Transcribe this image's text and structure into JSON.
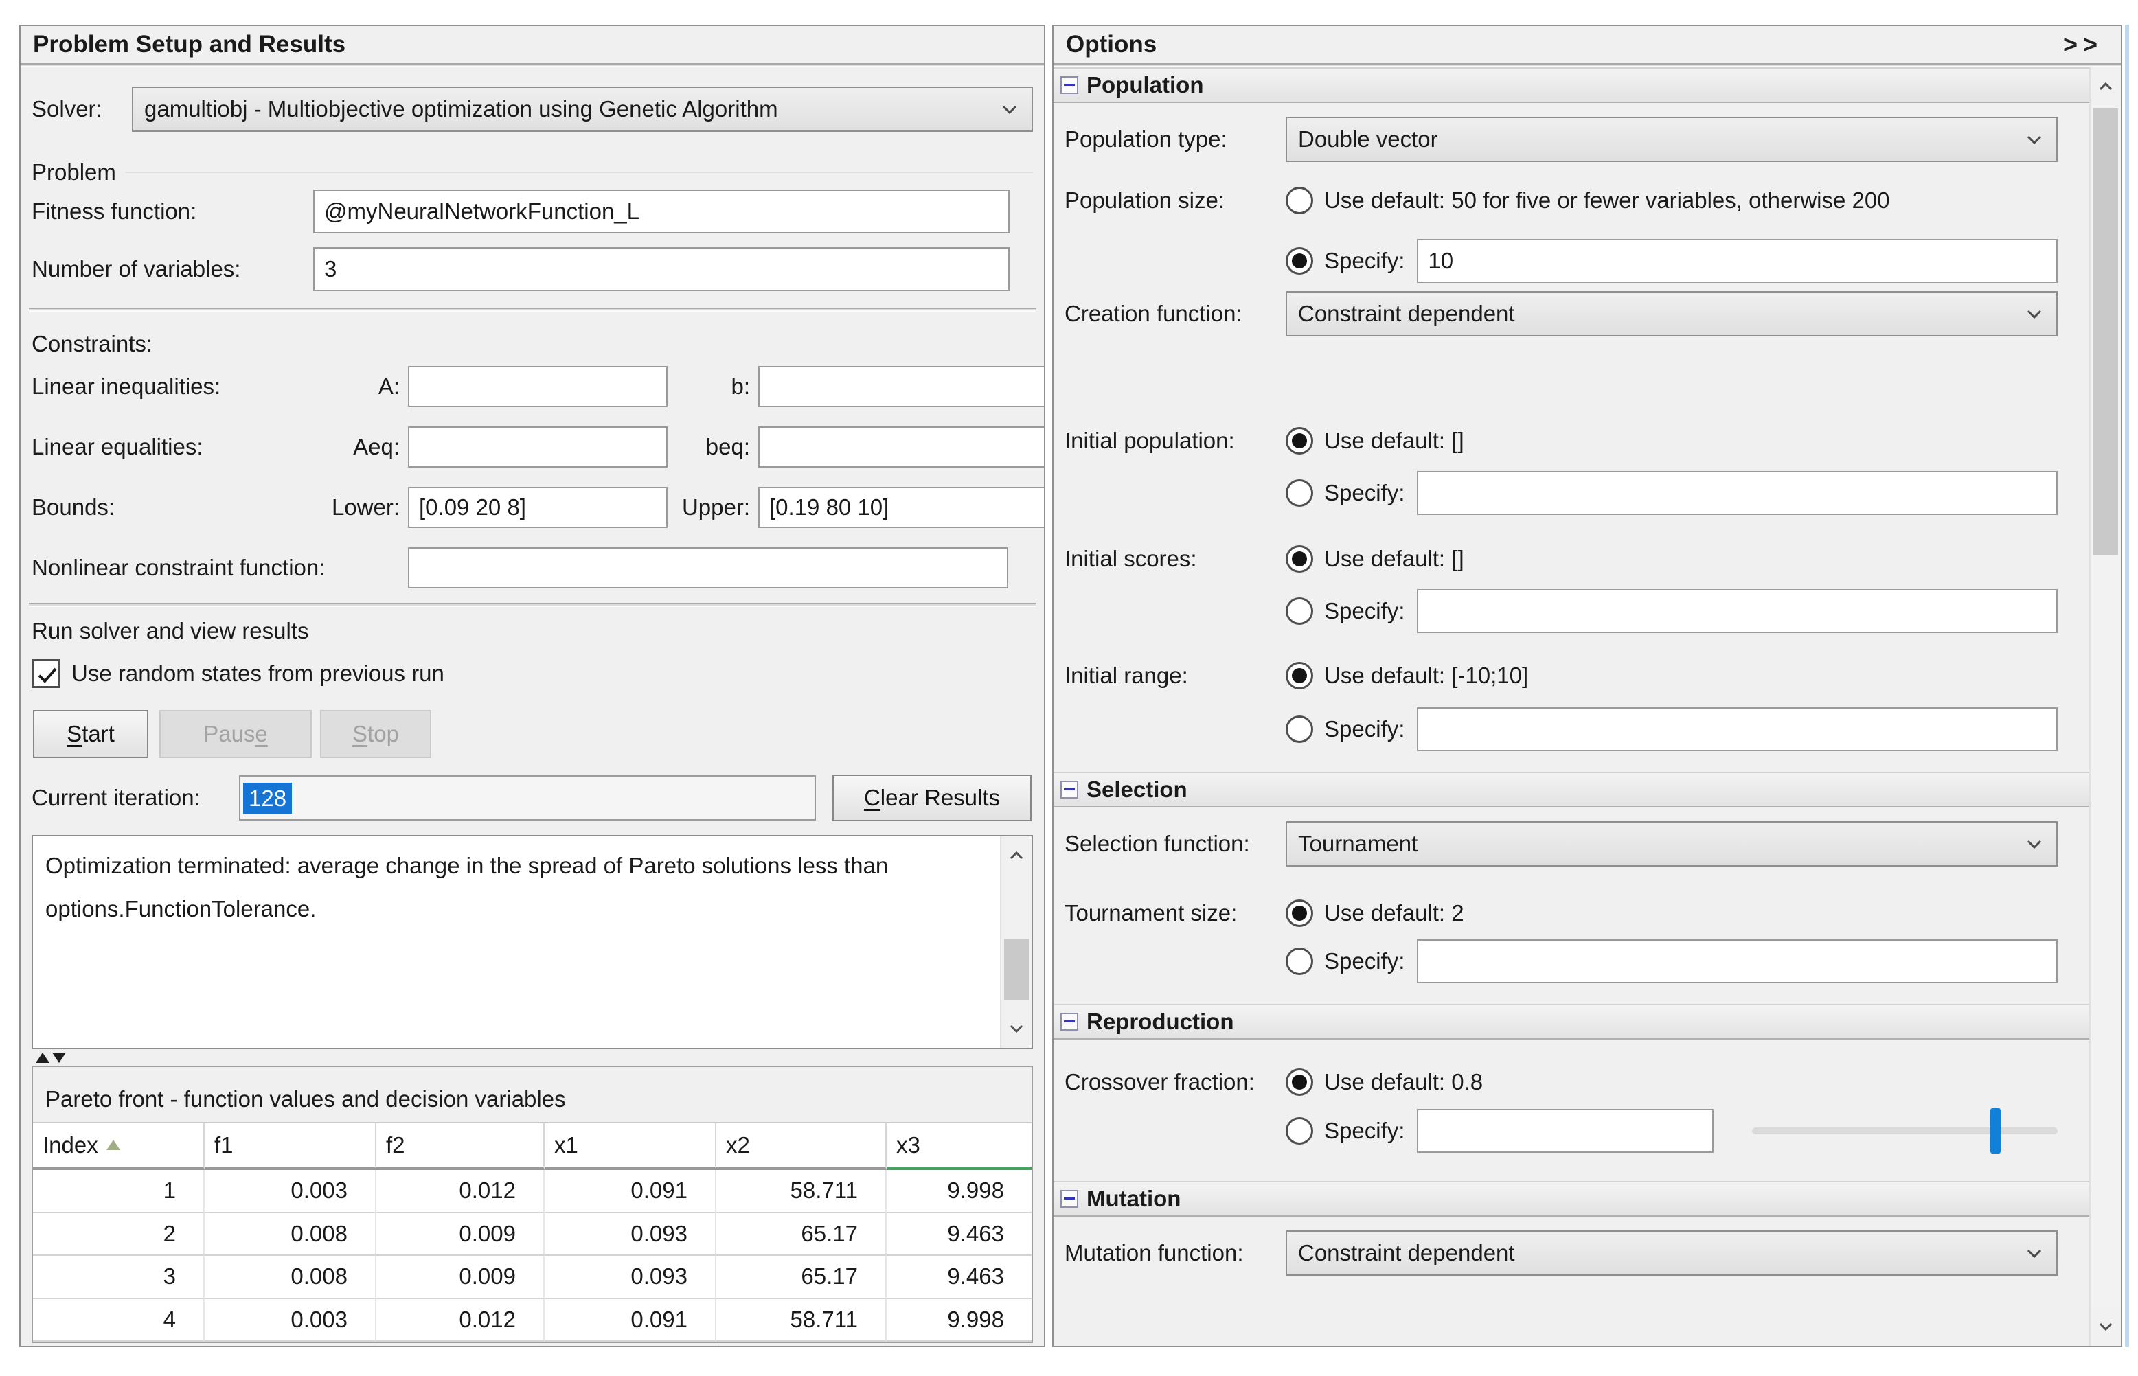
{
  "problem_panel": {
    "title": "Problem Setup and Results",
    "solver_label": "Solver:",
    "solver_value": "gamultiobj - Multiobjective optimization using Genetic Algorithm",
    "problem_group": {
      "label": "Problem",
      "fitness_label": "Fitness function:",
      "fitness_value": "@myNeuralNetworkFunction_L",
      "numvars_label": "Number of variables:",
      "numvars_value": "3"
    },
    "constraints": {
      "label": "Constraints:",
      "lin_ineq_label": "Linear inequalities:",
      "a_label": "A:",
      "a_value": "",
      "b_label": "b:",
      "b_value": "",
      "lin_eq_label": "Linear equalities:",
      "aeq_label": "Aeq:",
      "aeq_value": "",
      "beq_label": "beq:",
      "beq_value": "",
      "bounds_label": "Bounds:",
      "lower_label": "Lower:",
      "lower_value": "[0.09 20 8]",
      "upper_label": "Upper:",
      "upper_value": "[0.19 80 10]",
      "nonlinear_label": "Nonlinear constraint function:",
      "nonlinear_value": ""
    },
    "run": {
      "label": "Run solver and view results",
      "checkbox_label": "Use random states from previous run",
      "start_label": "Start",
      "pause_label": "Pause",
      "stop_label": "Stop",
      "iteration_label": "Current iteration:",
      "iteration_value": "128",
      "clear_label": "Clear Results",
      "status_text": "Optimization terminated: average change in the spread of Pareto solutions less than options.FunctionTolerance."
    },
    "pareto": {
      "title": "Pareto front - function values and decision variables",
      "columns": [
        "Index",
        "f1",
        "f2",
        "x1",
        "x2",
        "x3"
      ],
      "rows": [
        [
          "1",
          "0.003",
          "0.012",
          "0.091",
          "58.711",
          "9.998"
        ],
        [
          "2",
          "0.008",
          "0.009",
          "0.093",
          "65.17",
          "9.463"
        ],
        [
          "3",
          "0.008",
          "0.009",
          "0.093",
          "65.17",
          "9.463"
        ],
        [
          "4",
          "0.003",
          "0.012",
          "0.091",
          "58.711",
          "9.998"
        ]
      ]
    }
  },
  "options_panel": {
    "title": "Options",
    "expand_glyph": ">>",
    "population": {
      "header": "Population",
      "type_label": "Population type:",
      "type_value": "Double vector",
      "size_label": "Population size:",
      "size_default_label": "Use default: 50 for five or fewer variables, otherwise 200",
      "specify_label": "Specify:",
      "size_specify_value": "10",
      "creation_label": "Creation function:",
      "creation_value": "Constraint dependent",
      "init_pop_label": "Initial population:",
      "init_pop_default_label": "Use default: []",
      "init_pop_specify_value": "",
      "init_scores_label": "Initial scores:",
      "init_scores_default_label": "Use default: []",
      "init_scores_specify_value": "",
      "init_range_label": "Initial range:",
      "init_range_default_label": "Use default: [-10;10]",
      "init_range_specify_value": ""
    },
    "selection": {
      "header": "Selection",
      "function_label": "Selection function:",
      "function_value": "Tournament",
      "tournament_label": "Tournament size:",
      "tournament_default_label": "Use default: 2",
      "specify_label": "Specify:",
      "tournament_specify_value": ""
    },
    "reproduction": {
      "header": "Reproduction",
      "crossover_label": "Crossover fraction:",
      "crossover_default_label": "Use default: 0.8",
      "specify_label": "Specify:",
      "crossover_specify_value": "",
      "crossover_slider_value": 0.8
    },
    "mutation": {
      "header": "Mutation",
      "function_label": "Mutation function:",
      "function_value": "Constraint dependent"
    }
  },
  "states": {
    "use_random_states": true,
    "pop_size_default": false,
    "pop_size_specify": true,
    "init_pop_default": true,
    "init_pop_specify": false,
    "init_scores_default": true,
    "init_scores_specify": false,
    "init_range_default": true,
    "init_range_specify": false,
    "tournament_default": true,
    "tournament_specify": false,
    "crossover_default": true,
    "crossover_specify": false
  },
  "colors": {
    "selection_blue": "#1574d4",
    "slider_blue": "#1180d8",
    "sorted_column_green": "#44a45f",
    "panel_bg": "#f0f0f0"
  }
}
